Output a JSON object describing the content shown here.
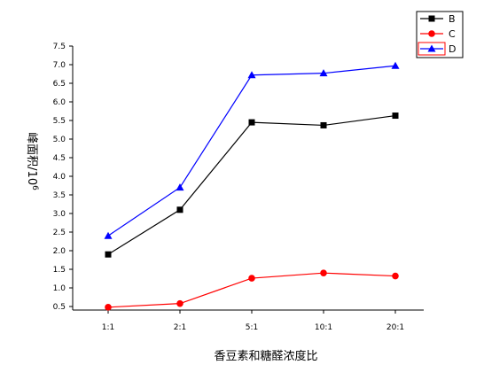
{
  "chart_data": {
    "type": "line",
    "categories": [
      "1:1",
      "2:1",
      "5:1",
      "10:1",
      "20:1"
    ],
    "xlabel": "香豆素和糖醛浓度比",
    "ylabel": "峰面积/10",
    "ylabel_superscript": "6",
    "ylim": [
      0.5,
      7.5
    ],
    "yticks": [
      "0.5",
      "1.0",
      "1.5",
      "2.0",
      "2.5",
      "3.0",
      "3.5",
      "4.0",
      "4.5",
      "5.0",
      "5.5",
      "6.0",
      "6.5",
      "7.0",
      "7.5"
    ],
    "grid": false,
    "legend_position": "top-right",
    "series": [
      {
        "name": "B",
        "color": "#000000",
        "marker": "square",
        "values": [
          1.9,
          3.1,
          5.45,
          5.37,
          5.63
        ]
      },
      {
        "name": "C",
        "color": "#ff0000",
        "marker": "circle",
        "values": [
          0.48,
          0.58,
          1.26,
          1.4,
          1.32
        ]
      },
      {
        "name": "D",
        "color": "#0000ff",
        "marker": "triangle",
        "values": [
          2.4,
          3.7,
          6.72,
          6.77,
          6.97
        ]
      }
    ]
  }
}
